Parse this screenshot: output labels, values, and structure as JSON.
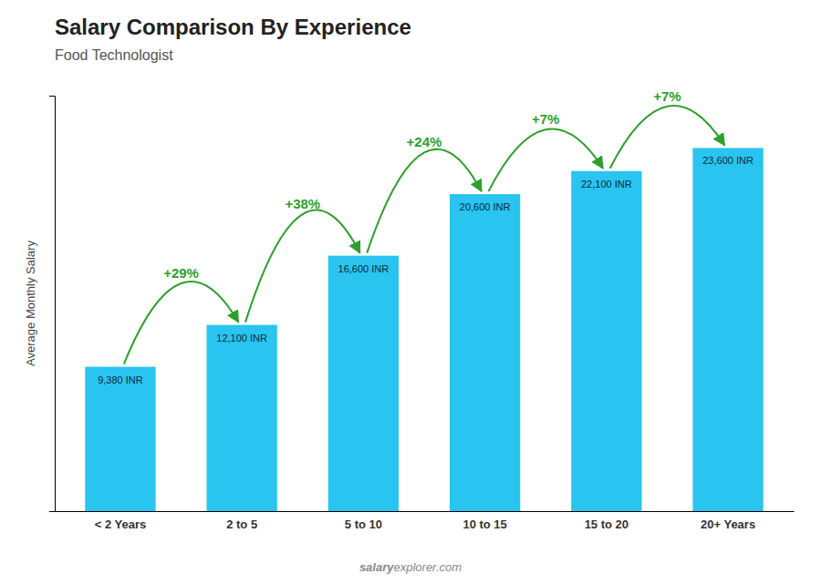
{
  "chart_data": {
    "type": "bar",
    "title": "Salary Comparison By Experience",
    "subtitle": "Food Technologist",
    "ylabel": "Average Monthly Salary",
    "categories": [
      "< 2 Years",
      "2 to 5",
      "5 to 10",
      "10 to 15",
      "15 to 20",
      "20+ Years"
    ],
    "values": [
      9380,
      12100,
      16600,
      20600,
      22100,
      23600
    ],
    "value_labels": [
      "9,380 INR",
      "12,100 INR",
      "16,600 INR",
      "20,600 INR",
      "22,100 INR",
      "23,600 INR"
    ],
    "data_labels": true,
    "color": "#29c4f0",
    "ylim": [
      0,
      27000
    ],
    "tick_labels": "x",
    "grid": false,
    "annotations": [
      "+29%",
      "+38%",
      "+24%",
      "+7%",
      "+7%"
    ],
    "watermark": [
      "salary",
      "explorer.com"
    ]
  }
}
